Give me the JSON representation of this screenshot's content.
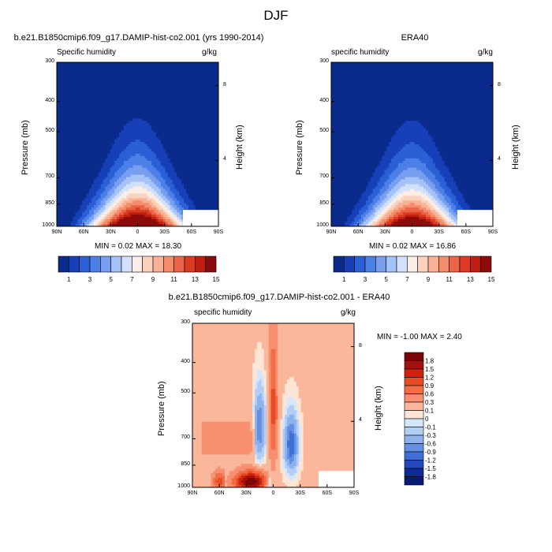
{
  "figure": {
    "title": "DJF"
  },
  "panels": {
    "model": {
      "title": "b.e21.B1850cmip6.f09_g17.DAMIP-hist-co2.001 (yrs 1990-2014)",
      "left_label": "Specific humidity",
      "right_label": "g/kg",
      "ylabel": "Pressure (mb)",
      "y2label": "Height (km)",
      "stats": "MIN =   0.02  MAX =  18.30"
    },
    "obs": {
      "title": "ERA40",
      "left_label": "specific humidity",
      "right_label": "g/kg",
      "ylabel": "Pressure (mb)",
      "y2label": "Height (km)",
      "stats": "MIN =   0.02  MAX =  16.86"
    },
    "diff": {
      "title": "b.e21.B1850cmip6.f09_g17.DAMIP-hist-co2.001 - ERA40",
      "left_label": "specific humidity",
      "right_label": "g/kg",
      "ylabel": "Pressure (mb)",
      "y2label": "Height (km)",
      "stats": "MIN =  -1.00  MAX =   2.40"
    }
  },
  "chart_data": [
    {
      "type": "heatmap",
      "name_ref": "model",
      "x_tick_labels": [
        "90N",
        "60N",
        "30N",
        "0",
        "30S",
        "60S",
        "90S"
      ],
      "y_tick_labels": [
        "300",
        "400",
        "500",
        "700",
        "850",
        "1000"
      ],
      "y2_tick_labels": [
        "8",
        "4"
      ],
      "y_scale": "log",
      "ylim": [
        1000,
        300
      ],
      "xlim": [
        90,
        -90
      ],
      "peak_value": 18.3,
      "min_value": 0.02,
      "colorbar_tick_labels": [
        "1",
        "3",
        "5",
        "7",
        "9",
        "11",
        "13",
        "15"
      ]
    },
    {
      "type": "heatmap",
      "name_ref": "obs",
      "x_tick_labels": [
        "90N",
        "60N",
        "30N",
        "0",
        "30S",
        "60S",
        "90S"
      ],
      "y_tick_labels": [
        "300",
        "400",
        "500",
        "700",
        "850",
        "1000"
      ],
      "y2_tick_labels": [
        "8",
        "4"
      ],
      "y_scale": "log",
      "ylim": [
        1000,
        300
      ],
      "xlim": [
        90,
        -90
      ],
      "peak_value": 16.86,
      "min_value": 0.02,
      "colorbar_tick_labels": [
        "1",
        "3",
        "5",
        "7",
        "9",
        "11",
        "13",
        "15"
      ]
    },
    {
      "type": "heatmap",
      "name_ref": "diff",
      "x_tick_labels": [
        "90N",
        "60N",
        "30N",
        "0",
        "30S",
        "60S",
        "90S"
      ],
      "y_tick_labels": [
        "300",
        "400",
        "500",
        "700",
        "850",
        "1000"
      ],
      "y2_tick_labels": [
        "8",
        "4"
      ],
      "y_scale": "log",
      "ylim": [
        1000,
        300
      ],
      "xlim": [
        90,
        -90
      ],
      "min_value": -1.0,
      "max_value": 2.4,
      "colorbar_tick_labels": [
        "1.8",
        "1.5",
        "1.2",
        "0.9",
        "0.6",
        "0.3",
        "0.1",
        "0",
        "-0.1",
        "-0.3",
        "-0.6",
        "-0.9",
        "-1.2",
        "-1.5",
        "-1.8"
      ]
    }
  ],
  "colors": {
    "seq_palette": [
      "#0a2a8c",
      "#1740b8",
      "#2a5fd6",
      "#4d80e6",
      "#789fef",
      "#a6c3f7",
      "#d2e1fb",
      "#fbeee4",
      "#fbd3bd",
      "#f9b295",
      "#f58d6b",
      "#ec6446",
      "#db3b22",
      "#c01f10",
      "#8c0b0b"
    ],
    "div_palette": [
      "#7a0606",
      "#a5100e",
      "#cc2410",
      "#e84c25",
      "#f26d43",
      "#f79070",
      "#fab79b",
      "#fde6d6",
      "#d4e6fb",
      "#b3cef5",
      "#8eb2ec",
      "#6590e2",
      "#3e6fd8",
      "#2247bf",
      "#0e2a98",
      "#071a78"
    ]
  }
}
